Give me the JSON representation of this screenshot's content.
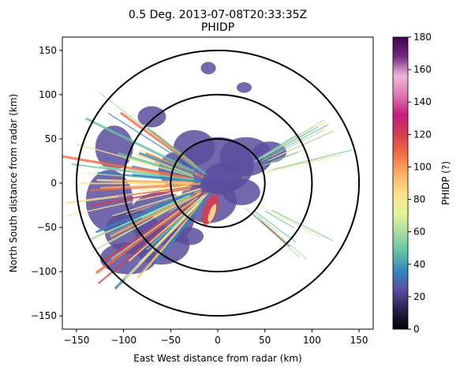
{
  "chart_data": {
    "type": "heatmap",
    "title_line1": "0.5 Deg. 2013-07-08T20:33:35Z",
    "title_line2": "PHIDP",
    "xlabel": "East West distance from radar (km)",
    "ylabel": "North South distance from radar (km)",
    "xlim": [
      -165,
      165
    ],
    "ylim": [
      -165,
      165
    ],
    "xticks": [
      -150,
      -100,
      -50,
      0,
      50,
      100,
      150
    ],
    "yticks": [
      -150,
      -100,
      -50,
      0,
      50,
      100,
      150
    ],
    "range_rings_km": [
      50,
      100,
      150
    ],
    "colorbar": {
      "label": "PHIDP (?)",
      "min": 0,
      "max": 180,
      "ticks": [
        0,
        20,
        40,
        60,
        80,
        100,
        120,
        140,
        160,
        180
      ],
      "colormap": [
        "#000004",
        "#2b1e4b",
        "#5a4b9f",
        "#3288bd",
        "#66c2a5",
        "#abdda4",
        "#e6f598",
        "#fee08b",
        "#fdae61",
        "#f46d43",
        "#d53e4f",
        "#c51b7d",
        "#de77ae",
        "#f1b6da",
        "#762a83",
        "#40004b"
      ]
    },
    "echo_color": "#5b4e9c",
    "grid": false
  }
}
